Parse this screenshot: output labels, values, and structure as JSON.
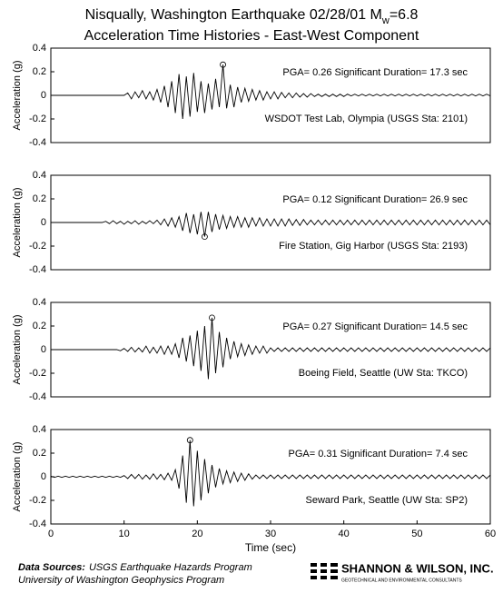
{
  "title": {
    "main": "Nisqually, Washington Earthquake 02/28/01 M",
    "subscript": "w",
    "suffix": "=6.8",
    "subtitle": "Acceleration Time Histories - East-West Component"
  },
  "chart_data": [
    {
      "type": "line",
      "ylabel": "Acceleration (g)",
      "color": "#000000",
      "xlim": [
        0,
        60
      ],
      "ylim": [
        -0.4,
        0.4
      ],
      "yticks": [
        0.4,
        0.2,
        0,
        -0.2,
        -0.4
      ],
      "pga_text": "PGA= 0.26  Significant Duration= 17.3 sec",
      "station": "WSDOT Test Lab, Olympia (USGS Sta: 2101)",
      "peak": {
        "x": 23.5,
        "y": 0.26
      },
      "x": [
        0,
        0.5,
        1,
        1.5,
        2,
        2.5,
        3,
        3.5,
        4,
        4.5,
        5,
        5.5,
        6,
        6.5,
        7,
        7.5,
        8,
        8.5,
        9,
        9.5,
        10,
        10.5,
        11,
        11.5,
        12,
        12.5,
        13,
        13.5,
        14,
        14.5,
        15,
        15.5,
        16,
        16.5,
        17,
        17.5,
        18,
        18.5,
        19,
        19.5,
        20,
        20.5,
        21,
        21.5,
        22,
        22.5,
        23,
        23.5,
        24,
        24.5,
        25,
        25.5,
        26,
        26.5,
        27,
        27.5,
        28,
        28.5,
        29,
        29.5,
        30,
        30.5,
        31,
        31.5,
        32,
        32.5,
        33,
        33.5,
        34,
        34.5,
        35,
        35.5,
        36,
        36.5,
        37,
        37.5,
        38,
        38.5,
        39,
        39.5,
        40,
        40.5,
        41,
        41.5,
        42,
        42.5,
        43,
        43.5,
        44,
        44.5,
        45,
        45.5,
        46,
        46.5,
        47,
        47.5,
        48,
        48.5,
        49,
        49.5,
        50,
        50.5,
        51,
        51.5,
        52,
        52.5,
        53,
        53.5,
        54,
        54.5,
        55,
        55.5,
        56,
        56.5,
        57,
        57.5,
        58,
        58.5,
        59,
        59.5,
        60
      ],
      "values": [
        0,
        0,
        0,
        0,
        0,
        0,
        0,
        0,
        0,
        0,
        0,
        0,
        0,
        0,
        0,
        0,
        0,
        0,
        0,
        0,
        0,
        0.02,
        -0.03,
        0.03,
        -0.02,
        0.04,
        -0.03,
        0.03,
        -0.04,
        0.05,
        -0.06,
        0.08,
        -0.1,
        0.12,
        -0.15,
        0.18,
        -0.2,
        0.16,
        -0.18,
        0.19,
        -0.14,
        0.12,
        -0.15,
        0.1,
        -0.12,
        0.14,
        -0.1,
        0.26,
        -0.11,
        0.09,
        -0.1,
        0.07,
        -0.06,
        0.06,
        -0.05,
        0.05,
        -0.04,
        0.04,
        -0.04,
        0.03,
        -0.03,
        0.03,
        -0.03,
        0.025,
        -0.02,
        0.02,
        -0.02,
        0.02,
        -0.015,
        0.015,
        -0.015,
        0.015,
        -0.01,
        0.01,
        -0.01,
        0.01,
        -0.01,
        0.01,
        -0.01,
        0.01,
        -0.01,
        0.01,
        -0.005,
        0.01,
        -0.005,
        0.01,
        -0.005,
        0.01,
        -0.005,
        0.01,
        -0.005,
        0.01,
        -0.005,
        0.01,
        -0.005,
        0.01,
        -0.005,
        0.01,
        -0.005,
        0.01,
        -0.005,
        0.01,
        -0.005,
        0.01,
        -0.005,
        0.01,
        -0.005,
        0.01,
        -0.005,
        0.01,
        -0.005,
        0.01,
        -0.005,
        0.01,
        -0.005,
        0.01,
        -0.005,
        0.01,
        -0.005,
        0.01,
        -0.005
      ]
    },
    {
      "type": "line",
      "ylabel": "Acceleration (g)",
      "color": "#000000",
      "xlim": [
        0,
        60
      ],
      "ylim": [
        -0.4,
        0.4
      ],
      "yticks": [
        0.4,
        0.2,
        0,
        -0.2,
        -0.4
      ],
      "pga_text": "PGA= 0.12  Significant Duration= 26.9 sec",
      "station": "Fire Station, Gig Harbor (USGS Sta: 2193)",
      "peak": {
        "x": 21,
        "y": -0.12
      },
      "x": [
        0,
        0.5,
        1,
        1.5,
        2,
        2.5,
        3,
        3.5,
        4,
        4.5,
        5,
        5.5,
        6,
        6.5,
        7,
        7.5,
        8,
        8.5,
        9,
        9.5,
        10,
        10.5,
        11,
        11.5,
        12,
        12.5,
        13,
        13.5,
        14,
        14.5,
        15,
        15.5,
        16,
        16.5,
        17,
        17.5,
        18,
        18.5,
        19,
        19.5,
        20,
        20.5,
        21,
        21.5,
        22,
        22.5,
        23,
        23.5,
        24,
        24.5,
        25,
        25.5,
        26,
        26.5,
        27,
        27.5,
        28,
        28.5,
        29,
        29.5,
        30,
        30.5,
        31,
        31.5,
        32,
        32.5,
        33,
        33.5,
        34,
        34.5,
        35,
        35.5,
        36,
        36.5,
        37,
        37.5,
        38,
        38.5,
        39,
        39.5,
        40,
        40.5,
        41,
        41.5,
        42,
        42.5,
        43,
        43.5,
        44,
        44.5,
        45,
        45.5,
        46,
        46.5,
        47,
        47.5,
        48,
        48.5,
        49,
        49.5,
        50,
        50.5,
        51,
        51.5,
        52,
        52.5,
        53,
        53.5,
        54,
        54.5,
        55,
        55.5,
        56,
        56.5,
        57,
        57.5,
        58,
        58.5,
        59,
        59.5,
        60
      ],
      "values": [
        0,
        0,
        0,
        0,
        0,
        0,
        0,
        0,
        0,
        0,
        0,
        0,
        0,
        0,
        0,
        0.01,
        -0.01,
        0.015,
        -0.01,
        0.01,
        -0.015,
        0.01,
        -0.01,
        0.015,
        -0.015,
        0.01,
        -0.01,
        0.015,
        -0.01,
        0.02,
        -0.02,
        0.03,
        -0.03,
        0.04,
        -0.04,
        0.05,
        -0.07,
        0.08,
        -0.09,
        0.07,
        -0.1,
        0.09,
        -0.12,
        0.09,
        -0.08,
        0.07,
        -0.06,
        0.06,
        -0.05,
        0.05,
        -0.04,
        0.05,
        -0.04,
        0.04,
        -0.04,
        0.04,
        -0.03,
        0.04,
        -0.03,
        0.03,
        -0.03,
        0.03,
        -0.03,
        0.03,
        -0.03,
        0.03,
        -0.025,
        0.025,
        -0.025,
        0.025,
        -0.02,
        0.02,
        -0.02,
        0.02,
        -0.02,
        0.02,
        -0.02,
        0.02,
        -0.02,
        0.02,
        -0.02,
        0.02,
        -0.02,
        0.02,
        -0.02,
        0.02,
        -0.02,
        0.02,
        -0.02,
        0.02,
        -0.02,
        0.02,
        -0.02,
        0.02,
        -0.02,
        0.02,
        -0.02,
        0.02,
        -0.02,
        0.02,
        -0.02,
        0.02,
        -0.02,
        0.02,
        -0.02,
        0.02,
        -0.02,
        0.02,
        -0.02,
        0.02,
        -0.02,
        0.02,
        -0.02,
        0.02,
        -0.02,
        0.02,
        -0.02,
        0.02,
        -0.02,
        0.02,
        -0.02
      ]
    },
    {
      "type": "line",
      "ylabel": "Acceleration (g)",
      "color": "#000000",
      "xlim": [
        0,
        60
      ],
      "ylim": [
        -0.4,
        0.4
      ],
      "yticks": [
        0.4,
        0.2,
        0,
        -0.2,
        -0.4
      ],
      "pga_text": "PGA= 0.27  Significant Duration= 14.5 sec",
      "station": "Boeing Field, Seattle (UW Sta: TKCO)",
      "peak": {
        "x": 22,
        "y": 0.27
      },
      "x": [
        0,
        0.5,
        1,
        1.5,
        2,
        2.5,
        3,
        3.5,
        4,
        4.5,
        5,
        5.5,
        6,
        6.5,
        7,
        7.5,
        8,
        8.5,
        9,
        9.5,
        10,
        10.5,
        11,
        11.5,
        12,
        12.5,
        13,
        13.5,
        14,
        14.5,
        15,
        15.5,
        16,
        16.5,
        17,
        17.5,
        18,
        18.5,
        19,
        19.5,
        20,
        20.5,
        21,
        21.5,
        22,
        22.5,
        23,
        23.5,
        24,
        24.5,
        25,
        25.5,
        26,
        26.5,
        27,
        27.5,
        28,
        28.5,
        29,
        29.5,
        30,
        30.5,
        31,
        31.5,
        32,
        32.5,
        33,
        33.5,
        34,
        34.5,
        35,
        35.5,
        36,
        36.5,
        37,
        37.5,
        38,
        38.5,
        39,
        39.5,
        40,
        40.5,
        41,
        41.5,
        42,
        42.5,
        43,
        43.5,
        44,
        44.5,
        45,
        45.5,
        46,
        46.5,
        47,
        47.5,
        48,
        48.5,
        49,
        49.5,
        50,
        50.5,
        51,
        51.5,
        52,
        52.5,
        53,
        53.5,
        54,
        54.5,
        55,
        55.5,
        56,
        56.5,
        57,
        57.5,
        58,
        58.5,
        59,
        59.5,
        60
      ],
      "values": [
        0,
        0,
        0,
        0,
        0,
        0,
        0,
        0,
        0,
        0,
        0,
        0,
        0,
        0,
        0,
        0,
        0,
        0,
        0,
        -0.01,
        0.01,
        -0.015,
        0.02,
        -0.02,
        0.015,
        -0.02,
        0.03,
        -0.03,
        0.02,
        -0.03,
        0.03,
        -0.04,
        0.03,
        -0.04,
        0.05,
        -0.07,
        0.1,
        -0.1,
        0.12,
        -0.14,
        0.16,
        -0.18,
        0.2,
        -0.25,
        0.27,
        -0.2,
        0.15,
        -0.15,
        0.1,
        -0.08,
        0.07,
        -0.06,
        0.05,
        -0.05,
        0.04,
        -0.04,
        0.03,
        -0.03,
        0.03,
        -0.03,
        0.015,
        -0.015,
        0.015,
        -0.015,
        0.015,
        -0.015,
        0.015,
        -0.015,
        0.015,
        -0.015,
        0.015,
        -0.015,
        0.015,
        -0.015,
        0.015,
        -0.015,
        0.015,
        -0.015,
        0.015,
        -0.015,
        0.015,
        -0.015,
        0.015,
        -0.015,
        0.015,
        -0.015,
        0.015,
        -0.015,
        0.015,
        -0.015,
        0.015,
        -0.015,
        0.015,
        -0.015,
        0.015,
        -0.015,
        0.015,
        -0.015,
        0.015,
        -0.015,
        0.015,
        -0.015,
        0.015,
        -0.015,
        0.015,
        -0.015,
        0.015,
        -0.015,
        0.015,
        -0.015,
        0.015,
        -0.015,
        0.015,
        -0.015,
        0.015,
        -0.015,
        0.015,
        -0.015,
        0.015,
        -0.015,
        0.015
      ]
    },
    {
      "type": "line",
      "ylabel": "Acceleration (g)",
      "xlabel": "Time (sec)",
      "color": "#000000",
      "xlim": [
        0,
        60
      ],
      "ylim": [
        -0.4,
        0.4
      ],
      "yticks": [
        0.4,
        0.2,
        0,
        -0.2,
        -0.4
      ],
      "xticks": [
        0,
        10,
        20,
        30,
        40,
        50,
        60
      ],
      "pga_text": "PGA= 0.31  Significant Duration=  7.4 sec",
      "station": "Seward Park, Seattle (UW Sta: SP2)",
      "peak": {
        "x": 19,
        "y": 0.31
      },
      "x": [
        0,
        0.5,
        1,
        1.5,
        2,
        2.5,
        3,
        3.5,
        4,
        4.5,
        5,
        5.5,
        6,
        6.5,
        7,
        7.5,
        8,
        8.5,
        9,
        9.5,
        10,
        10.5,
        11,
        11.5,
        12,
        12.5,
        13,
        13.5,
        14,
        14.5,
        15,
        15.5,
        16,
        16.5,
        17,
        17.5,
        18,
        18.5,
        19,
        19.5,
        20,
        20.5,
        21,
        21.5,
        22,
        22.5,
        23,
        23.5,
        24,
        24.5,
        25,
        25.5,
        26,
        26.5,
        27,
        27.5,
        28,
        28.5,
        29,
        29.5,
        30,
        30.5,
        31,
        31.5,
        32,
        32.5,
        33,
        33.5,
        34,
        34.5,
        35,
        35.5,
        36,
        36.5,
        37,
        37.5,
        38,
        38.5,
        39,
        39.5,
        40,
        40.5,
        41,
        41.5,
        42,
        42.5,
        43,
        43.5,
        44,
        44.5,
        45,
        45.5,
        46,
        46.5,
        47,
        47.5,
        48,
        48.5,
        49,
        49.5,
        50,
        50.5,
        51,
        51.5,
        52,
        52.5,
        53,
        53.5,
        54,
        54.5,
        55,
        55.5,
        56,
        56.5,
        57,
        57.5,
        58,
        58.5,
        59,
        59.5,
        60
      ],
      "values": [
        0.005,
        -0.005,
        0.005,
        -0.005,
        0.005,
        -0.005,
        0.005,
        -0.005,
        0.005,
        -0.005,
        0.005,
        -0.005,
        0.005,
        -0.005,
        0.005,
        -0.005,
        0.005,
        -0.005,
        0.005,
        -0.005,
        0.01,
        -0.015,
        0.02,
        -0.015,
        0.02,
        -0.02,
        0.015,
        -0.02,
        0.025,
        -0.02,
        0.02,
        -0.025,
        0.03,
        -0.03,
        0.06,
        -0.1,
        0.18,
        -0.22,
        0.31,
        -0.25,
        0.22,
        -0.2,
        0.15,
        -0.14,
        0.1,
        -0.09,
        0.07,
        -0.06,
        0.05,
        -0.05,
        0.04,
        -0.04,
        0.03,
        -0.03,
        0.025,
        -0.02,
        0.015,
        -0.015,
        0.015,
        -0.015,
        0.015,
        -0.015,
        0.015,
        -0.015,
        0.015,
        -0.015,
        0.015,
        -0.015,
        0.015,
        -0.015,
        0.015,
        -0.015,
        0.015,
        -0.015,
        0.015,
        -0.015,
        0.015,
        -0.015,
        0.015,
        -0.015,
        0.015,
        -0.015,
        0.015,
        -0.015,
        0.015,
        -0.015,
        0.015,
        -0.015,
        0.015,
        -0.015,
        0.015,
        -0.015,
        0.015,
        -0.015,
        0.015,
        -0.015,
        0.015,
        -0.015,
        0.015,
        -0.015,
        0.015,
        -0.015,
        0.015,
        -0.015,
        0.015,
        -0.015,
        0.015,
        -0.015,
        0.015,
        -0.015,
        0.015,
        -0.015,
        0.015,
        -0.015,
        0.015,
        -0.015,
        0.015,
        -0.015,
        0.015,
        -0.015,
        0.015
      ]
    }
  ],
  "footer": {
    "label": "Data Sources:",
    "source1": "USGS Earthquake Hazards Program",
    "source2": "University of Washington Geophysics Program",
    "company": "SHANNON & WILSON, INC.",
    "company_tagline": "GEOTECHNICAL AND ENVIRONMENTAL CONSULTANTS"
  }
}
